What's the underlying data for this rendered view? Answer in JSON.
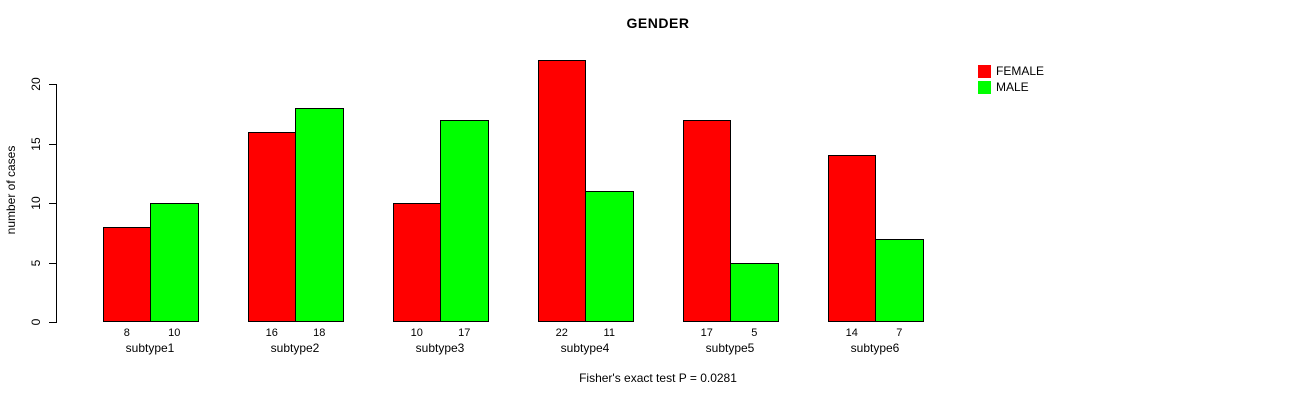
{
  "chart_data": {
    "type": "bar",
    "title": "GENDER",
    "ylabel": "number of cases",
    "xlabel": "",
    "footer": "Fisher's exact test P = 0.0281",
    "categories": [
      "subtype1",
      "subtype2",
      "subtype3",
      "subtype4",
      "subtype5",
      "subtype6"
    ],
    "series": [
      {
        "name": "FEMALE",
        "color": "#FF0000",
        "values": [
          8,
          16,
          10,
          22,
          17,
          14
        ]
      },
      {
        "name": "MALE",
        "color": "#00FF00",
        "values": [
          10,
          18,
          17,
          11,
          5,
          7
        ]
      }
    ],
    "value_labels_shown": true,
    "ylim": [
      0,
      22
    ],
    "yticks": [
      0,
      5,
      10,
      15,
      20
    ],
    "grid": false,
    "legend_position": "top-right",
    "bar_border_color": "#000000",
    "background_color": "#FFFFFF"
  }
}
